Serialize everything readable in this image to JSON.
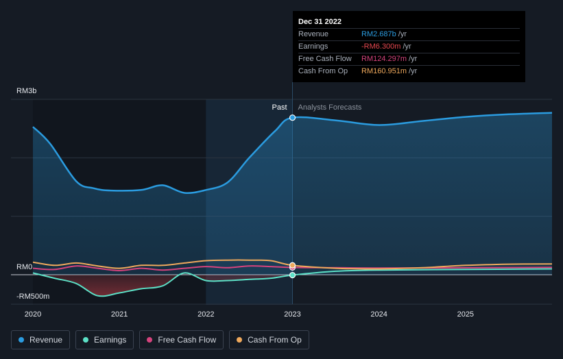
{
  "chart_data": {
    "type": "line",
    "y_axis": {
      "top_label": "RM3b",
      "zero_label": "RM0",
      "bottom_label": "-RM500m",
      "unit": "RM",
      "ylim": [
        -500,
        3000
      ]
    },
    "x_ticks": [
      "2020",
      "2021",
      "2022",
      "2023",
      "2024",
      "2025"
    ],
    "past_label": "Past",
    "forecast_label": "Analysts Forecasts",
    "series": [
      {
        "name": "Revenue",
        "color": "#2b9ce0",
        "points": [
          [
            2020.0,
            2530
          ],
          [
            2020.2,
            2240
          ],
          [
            2020.5,
            1600
          ],
          [
            2020.7,
            1480
          ],
          [
            2020.9,
            1440
          ],
          [
            2021.25,
            1450
          ],
          [
            2021.5,
            1530
          ],
          [
            2021.75,
            1400
          ],
          [
            2022.0,
            1450
          ],
          [
            2022.25,
            1580
          ],
          [
            2022.5,
            2000
          ],
          [
            2022.8,
            2460
          ],
          [
            2023.0,
            2687
          ],
          [
            2023.5,
            2640
          ],
          [
            2024.0,
            2560
          ],
          [
            2024.5,
            2630
          ],
          [
            2025.0,
            2700
          ],
          [
            2025.5,
            2745
          ],
          [
            2026.0,
            2770
          ]
        ]
      },
      {
        "name": "Earnings",
        "color": "#5ce1c7",
        "points": [
          [
            2020.0,
            30
          ],
          [
            2020.25,
            -60
          ],
          [
            2020.5,
            -150
          ],
          [
            2020.75,
            -360
          ],
          [
            2021.0,
            -310
          ],
          [
            2021.25,
            -240
          ],
          [
            2021.5,
            -190
          ],
          [
            2021.75,
            30
          ],
          [
            2022.0,
            -100
          ],
          [
            2022.25,
            -100
          ],
          [
            2022.5,
            -80
          ],
          [
            2022.75,
            -60
          ],
          [
            2023.0,
            -6.3
          ],
          [
            2023.5,
            60
          ],
          [
            2024.0,
            80
          ],
          [
            2025.0,
            90
          ],
          [
            2026.0,
            100
          ]
        ]
      },
      {
        "name": "Free Cash Flow",
        "color": "#d5437d",
        "points": [
          [
            2020.0,
            110
          ],
          [
            2020.25,
            90
          ],
          [
            2020.5,
            150
          ],
          [
            2020.75,
            110
          ],
          [
            2021.0,
            70
          ],
          [
            2021.25,
            110
          ],
          [
            2021.5,
            80
          ],
          [
            2021.75,
            110
          ],
          [
            2022.0,
            140
          ],
          [
            2022.25,
            120
          ],
          [
            2022.5,
            150
          ],
          [
            2022.75,
            140
          ],
          [
            2023.0,
            124.297
          ],
          [
            2023.5,
            120
          ],
          [
            2024.0,
            115
          ],
          [
            2025.0,
            120
          ],
          [
            2026.0,
            125
          ]
        ]
      },
      {
        "name": "Cash From Op",
        "color": "#efa95c",
        "points": [
          [
            2020.0,
            215
          ],
          [
            2020.25,
            160
          ],
          [
            2020.5,
            200
          ],
          [
            2020.75,
            150
          ],
          [
            2021.0,
            110
          ],
          [
            2021.25,
            160
          ],
          [
            2021.5,
            160
          ],
          [
            2021.75,
            200
          ],
          [
            2022.0,
            240
          ],
          [
            2022.25,
            250
          ],
          [
            2022.5,
            250
          ],
          [
            2022.75,
            240
          ],
          [
            2023.0,
            160.951
          ],
          [
            2023.5,
            110
          ],
          [
            2024.0,
            100
          ],
          [
            2024.5,
            120
          ],
          [
            2025.0,
            160
          ],
          [
            2025.5,
            180
          ],
          [
            2026.0,
            185
          ]
        ]
      }
    ]
  },
  "tooltip": {
    "date": "Dec 31 2022",
    "rows": [
      {
        "label": "Revenue",
        "value": "RM2.687b",
        "unit": "/yr",
        "color": "#2b9ce0"
      },
      {
        "label": "Earnings",
        "value": "-RM6.300m",
        "unit": "/yr",
        "color": "#e4474f"
      },
      {
        "label": "Free Cash Flow",
        "value": "RM124.297m",
        "unit": "/yr",
        "color": "#d5437d"
      },
      {
        "label": "Cash From Op",
        "value": "RM160.951m",
        "unit": "/yr",
        "color": "#efa95c"
      }
    ]
  },
  "legend": [
    {
      "label": "Revenue",
      "color": "#2b9ce0"
    },
    {
      "label": "Earnings",
      "color": "#5ce1c7"
    },
    {
      "label": "Free Cash Flow",
      "color": "#d5437d"
    },
    {
      "label": "Cash From Op",
      "color": "#efa95c"
    }
  ]
}
